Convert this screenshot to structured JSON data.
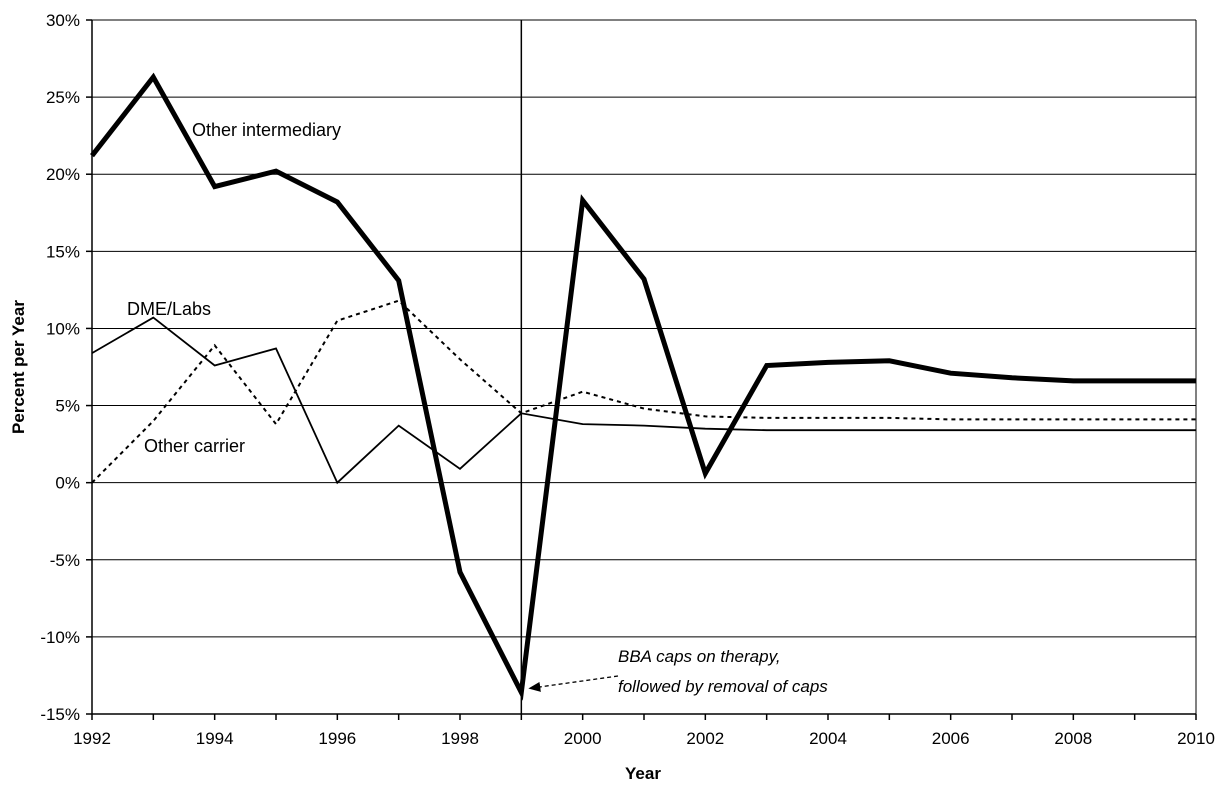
{
  "chart_data": {
    "type": "line",
    "title": "",
    "xlabel": "Year",
    "ylabel": "Percent per Year",
    "xlim": [
      1992,
      2010
    ],
    "ylim": [
      -15,
      30
    ],
    "x_ticks": [
      "1992",
      "1994",
      "1996",
      "1998",
      "2000",
      "2002",
      "2004",
      "2006",
      "2008",
      "2010"
    ],
    "y_ticks": [
      "-15%",
      "-10%",
      "-5%",
      "0%",
      "5%",
      "10%",
      "15%",
      "20%",
      "25%",
      "30%"
    ],
    "grid": true,
    "x": [
      1992,
      1993,
      1994,
      1995,
      1996,
      1997,
      1998,
      1999,
      2000,
      2001,
      2002,
      2003,
      2004,
      2005,
      2006,
      2007,
      2008,
      2009,
      2010
    ],
    "series": [
      {
        "name": "Other intermediary",
        "style": "thick-solid",
        "color": "#000000",
        "values": [
          21.2,
          26.3,
          19.2,
          20.2,
          18.2,
          13.1,
          -5.8,
          -13.6,
          18.3,
          13.2,
          0.6,
          7.6,
          7.8,
          7.9,
          7.1,
          6.8,
          6.6,
          6.6,
          6.6
        ]
      },
      {
        "name": "DME/Labs",
        "style": "thin-solid",
        "color": "#000000",
        "values": [
          8.4,
          10.7,
          7.6,
          8.7,
          0.0,
          3.7,
          0.9,
          4.5,
          3.8,
          3.7,
          3.5,
          3.4,
          3.4,
          3.4,
          3.4,
          3.4,
          3.4,
          3.4,
          3.4
        ]
      },
      {
        "name": "Other carrier",
        "style": "dashed",
        "color": "#000000",
        "values": [
          0.0,
          4.0,
          8.9,
          3.8,
          10.5,
          11.8,
          8.0,
          4.5,
          5.9,
          4.8,
          4.3,
          4.2,
          4.2,
          4.2,
          4.1,
          4.1,
          4.1,
          4.1,
          4.1
        ]
      }
    ],
    "reference_line": {
      "x": 1999
    },
    "annotation": {
      "lines": [
        "BBA caps on therapy,",
        "followed by removal of caps"
      ],
      "target": {
        "x": 1999,
        "y": -13.6
      }
    }
  }
}
